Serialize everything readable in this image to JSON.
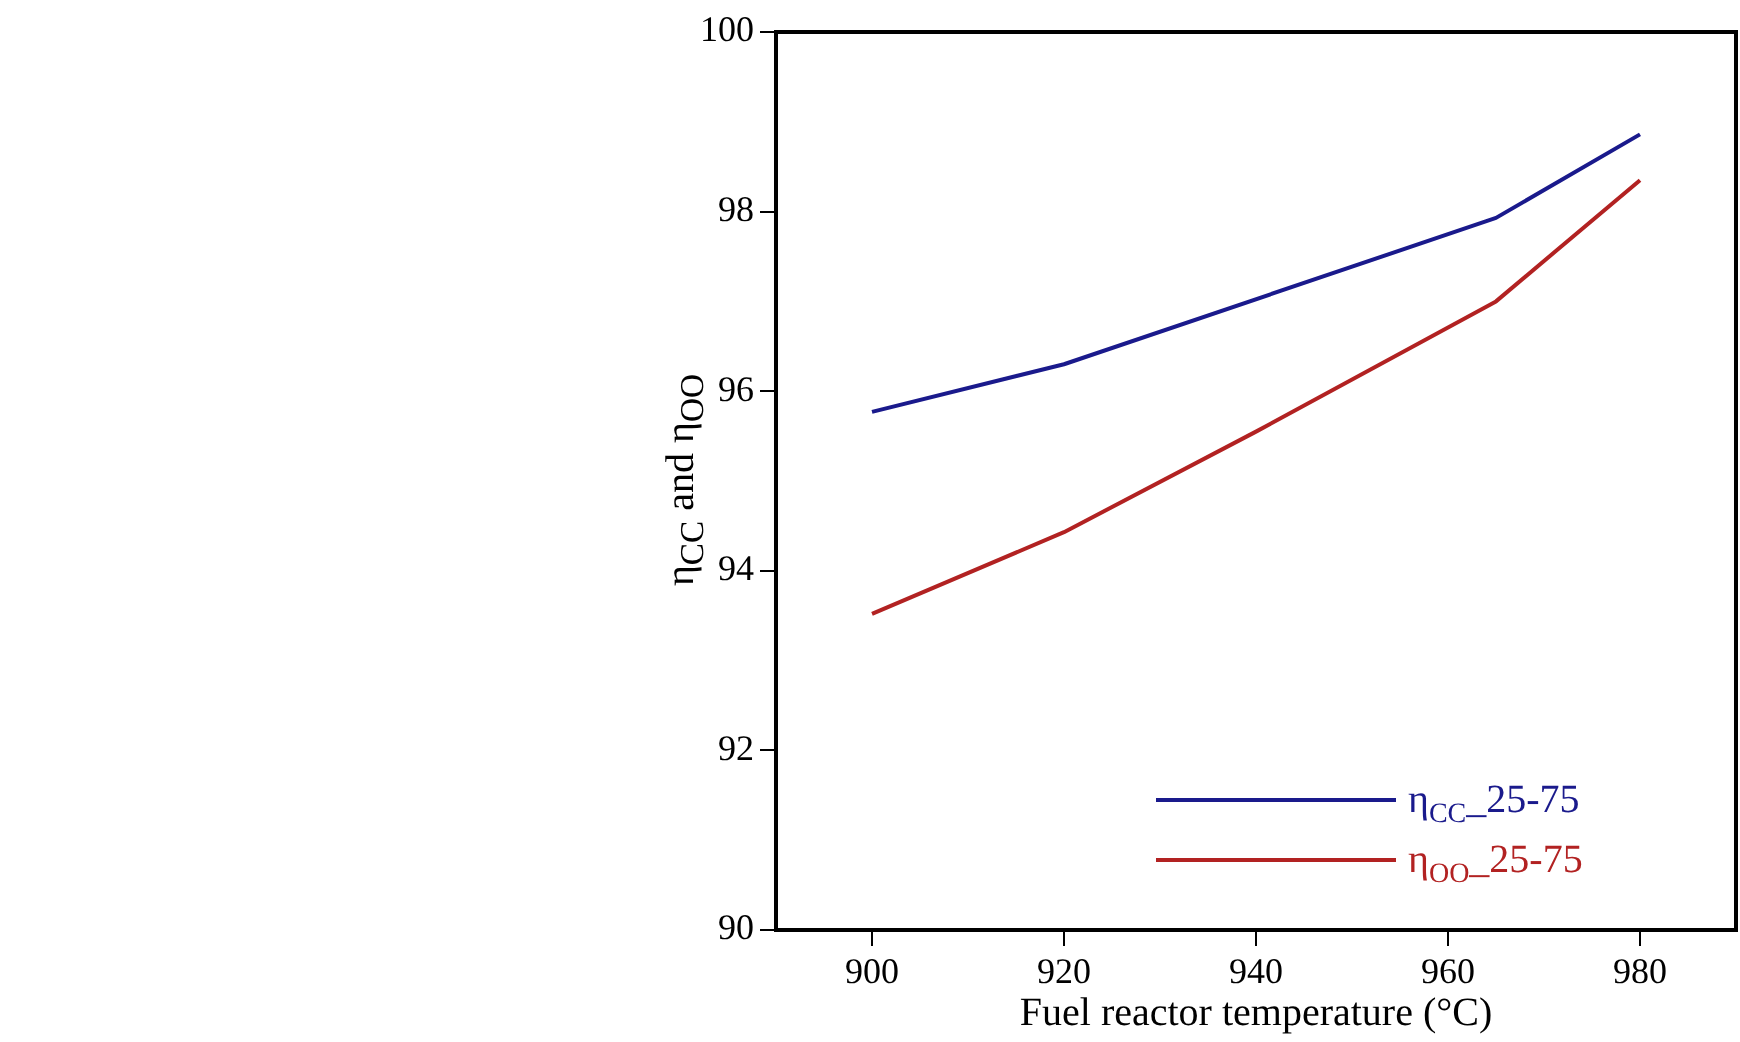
{
  "chart_data": {
    "type": "line",
    "xlabel": "Fuel reactor temperature (°C)",
    "ylabel": "η$_{CC}$ and η$_{OO}$",
    "series": [
      {
        "name": "η$_{CC}$_25-75",
        "color": "#1a1a8c",
        "x": [
          900,
          920,
          965,
          980
        ],
        "values": [
          95.77,
          96.3,
          97.93,
          98.86
        ]
      },
      {
        "name": "η$_{OO}$_25-75",
        "color": "#b22222",
        "x": [
          900,
          920,
          940,
          965,
          980
        ],
        "values": [
          93.52,
          94.43,
          95.55,
          97.0,
          98.35
        ]
      }
    ],
    "xlim": [
      890,
      990
    ],
    "xticks": [
      900,
      920,
      940,
      960,
      980
    ],
    "ylim": [
      90,
      100
    ],
    "yticks": [
      90,
      92,
      94,
      96,
      98,
      100
    ],
    "grid": false,
    "legend": "bottom right",
    "marker": "none",
    "line_style": "solid"
  }
}
